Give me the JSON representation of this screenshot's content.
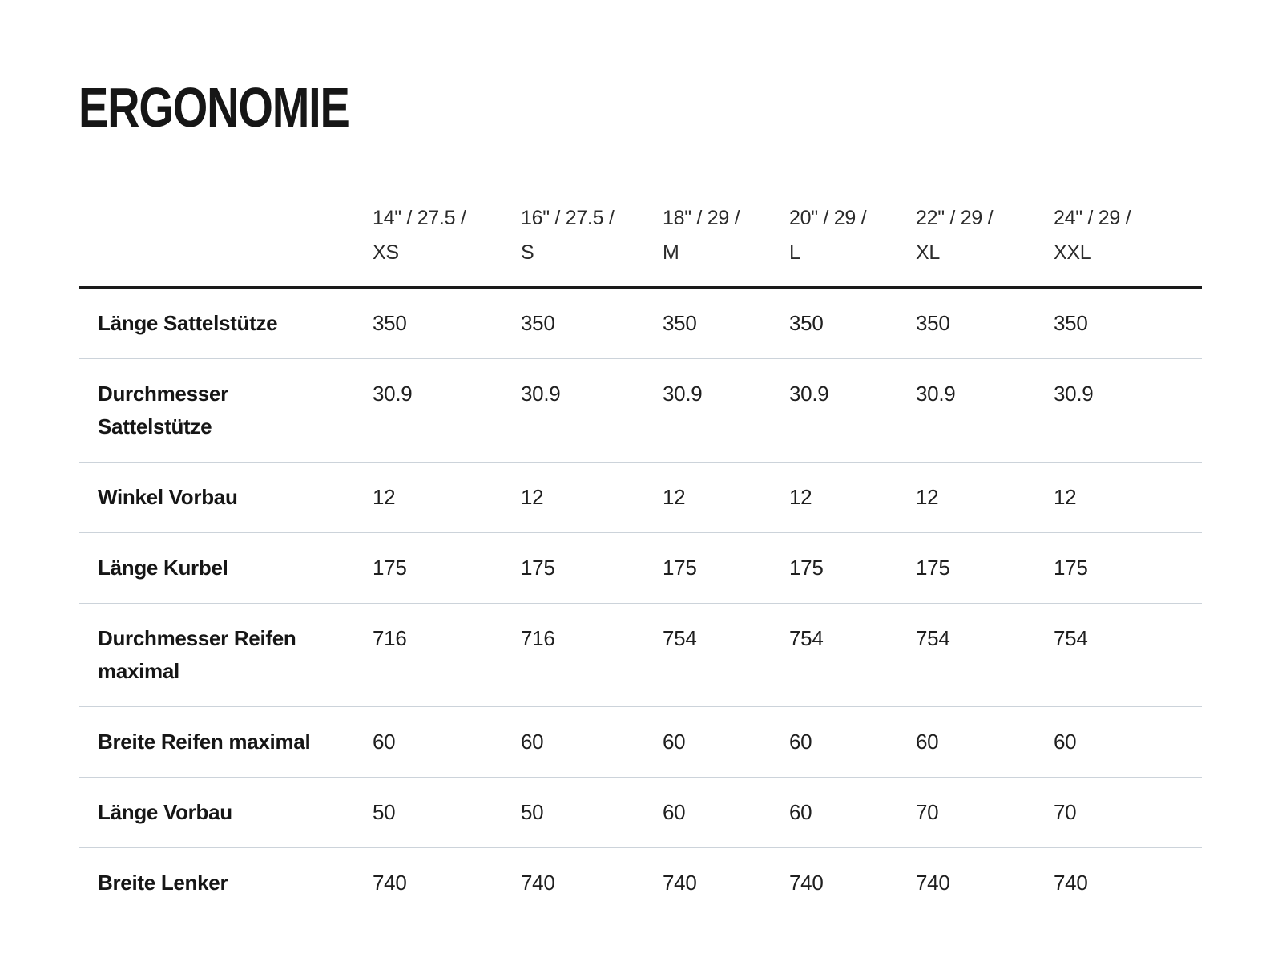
{
  "title": "ERGONOMIE",
  "colors": {
    "background": "#ffffff",
    "text": "#1f1f1f",
    "text_strong": "#161616",
    "header_text": "#2b2b2b",
    "heavy_rule": "#1a1a1a",
    "row_divider": "#ccd3da"
  },
  "table": {
    "columns": [
      {
        "lines": [
          "14\" / 27.5 /",
          "XS"
        ]
      },
      {
        "lines": [
          "16\" / 27.5 /",
          "S"
        ]
      },
      {
        "lines": [
          "18\" / 29 /",
          "M"
        ]
      },
      {
        "lines": [
          "20\" / 29 /",
          "L"
        ]
      },
      {
        "lines": [
          "22\" / 29 /",
          "XL"
        ]
      },
      {
        "lines": [
          "24\" / 29 /",
          "XXL"
        ]
      }
    ],
    "rows": [
      {
        "label": "Länge Sattelstütze",
        "values": [
          "350",
          "350",
          "350",
          "350",
          "350",
          "350"
        ]
      },
      {
        "label": "Durchmesser Sattelstütze",
        "values": [
          "30.9",
          "30.9",
          "30.9",
          "30.9",
          "30.9",
          "30.9"
        ]
      },
      {
        "label": "Winkel Vorbau",
        "values": [
          "12",
          "12",
          "12",
          "12",
          "12",
          "12"
        ]
      },
      {
        "label": "Länge Kurbel",
        "values": [
          "175",
          "175",
          "175",
          "175",
          "175",
          "175"
        ]
      },
      {
        "label": "Durchmesser Reifen maximal",
        "values": [
          "716",
          "716",
          "754",
          "754",
          "754",
          "754"
        ]
      },
      {
        "label": "Breite Reifen maximal",
        "values": [
          "60",
          "60",
          "60",
          "60",
          "60",
          "60"
        ]
      },
      {
        "label": "Länge Vorbau",
        "values": [
          "50",
          "50",
          "60",
          "60",
          "70",
          "70"
        ]
      },
      {
        "label": "Breite Lenker",
        "values": [
          "740",
          "740",
          "740",
          "740",
          "740",
          "740"
        ]
      }
    ]
  }
}
